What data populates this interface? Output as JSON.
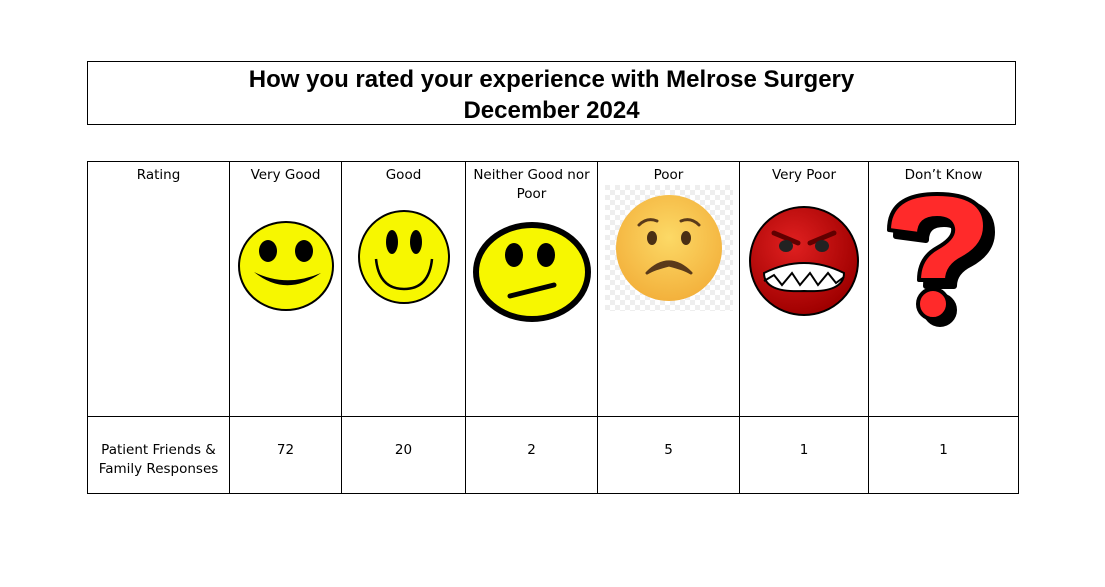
{
  "title": {
    "line1": "How you rated your experience with Melrose Surgery",
    "line2": "December 2024"
  },
  "table": {
    "header_label": "Rating",
    "row_label": "Patient Friends & Family Responses",
    "columns": [
      {
        "label": "Very Good",
        "icon": "very-good-smiley-icon",
        "responses": "72"
      },
      {
        "label": "Good",
        "icon": "good-smiley-icon",
        "responses": "20"
      },
      {
        "label": "Neither Good nor Poor",
        "icon": "neutral-face-icon",
        "responses": "2"
      },
      {
        "label": "Poor",
        "icon": "worried-face-icon",
        "responses": "5"
      },
      {
        "label": "Very Poor",
        "icon": "angry-face-icon",
        "responses": "1"
      },
      {
        "label": "Don’t Know",
        "icon": "question-mark-icon",
        "responses": "1"
      }
    ]
  },
  "colors": {
    "smiley_yellow": "#f7f700",
    "poor_orange": "#f5c04a",
    "angry_red": "#cc0000",
    "question_red": "#ff2a2a"
  }
}
